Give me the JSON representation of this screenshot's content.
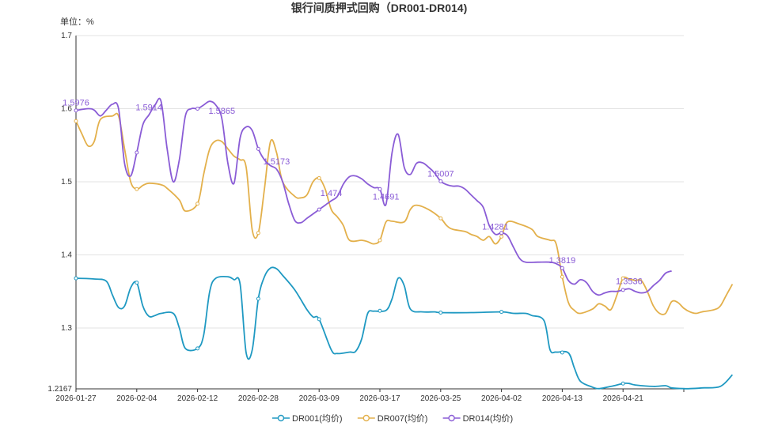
{
  "chart_data": {
    "type": "line",
    "title": "银行间质押式回购（DR001-DR014)",
    "unit_label": "单位：%",
    "ylim": [
      1.2167,
      1.7
    ],
    "yticks": [
      1.7,
      1.6,
      1.5,
      1.4,
      1.3
    ],
    "ymin_label": "1.2167",
    "x_tick_labels": [
      "2026-01-27",
      "2026-02-04",
      "2026-02-12",
      "2026-02-28",
      "2026-03-09",
      "2026-03-17",
      "2026-03-25",
      "2026-04-02",
      "2026-04-13",
      "2026-04-21"
    ],
    "x_tick_pos": [
      0,
      10,
      20,
      30,
      40,
      50,
      60,
      70,
      80,
      90
    ],
    "x_max": 100,
    "series": [
      {
        "name": "DR001(均价)",
        "color": "#1f99c2",
        "data": [
          [
            0,
            1.368
          ],
          [
            3,
            1.367
          ],
          [
            5,
            1.364
          ],
          [
            6,
            1.345
          ],
          [
            7,
            1.328
          ],
          [
            8,
            1.33
          ],
          [
            9,
            1.355
          ],
          [
            10,
            1.362
          ],
          [
            11,
            1.33
          ],
          [
            12,
            1.316
          ],
          [
            13,
            1.317
          ],
          [
            14,
            1.32
          ],
          [
            16,
            1.32
          ],
          [
            17,
            1.3
          ],
          [
            18,
            1.272
          ],
          [
            20,
            1.272
          ],
          [
            21,
            1.29
          ],
          [
            22,
            1.35
          ],
          [
            23,
            1.368
          ],
          [
            25,
            1.37
          ],
          [
            26,
            1.366
          ],
          [
            27,
            1.36
          ],
          [
            28,
            1.266
          ],
          [
            29,
            1.27
          ],
          [
            30,
            1.34
          ],
          [
            31,
            1.37
          ],
          [
            32,
            1.382
          ],
          [
            33,
            1.381
          ],
          [
            34,
            1.372
          ],
          [
            36,
            1.352
          ],
          [
            38,
            1.325
          ],
          [
            39,
            1.315
          ],
          [
            40,
            1.312
          ],
          [
            42,
            1.27
          ],
          [
            43,
            1.265
          ],
          [
            45,
            1.267
          ],
          [
            46,
            1.268
          ],
          [
            47,
            1.285
          ],
          [
            48,
            1.32
          ],
          [
            49,
            1.323
          ],
          [
            51,
            1.324
          ],
          [
            52,
            1.34
          ],
          [
            53,
            1.368
          ],
          [
            54,
            1.358
          ],
          [
            55,
            1.326
          ],
          [
            57,
            1.322
          ],
          [
            59,
            1.322
          ],
          [
            60,
            1.321
          ],
          [
            65,
            1.321
          ],
          [
            70,
            1.322
          ],
          [
            72,
            1.32
          ],
          [
            74,
            1.32
          ],
          [
            75,
            1.317
          ],
          [
            77,
            1.31
          ],
          [
            78,
            1.27
          ],
          [
            79,
            1.267
          ],
          [
            81,
            1.266
          ],
          [
            82,
            1.245
          ],
          [
            83,
            1.227
          ],
          [
            85,
            1.219
          ],
          [
            86,
            1.217
          ],
          [
            88,
            1.22
          ],
          [
            90,
            1.224
          ],
          [
            91,
            1.224
          ],
          [
            92,
            1.222
          ],
          [
            95,
            1.22
          ],
          [
            97,
            1.221
          ],
          [
            98,
            1.218
          ],
          [
            100,
            1.217
          ],
          [
            101,
            1.217
          ],
          [
            103,
            1.218
          ],
          [
            106,
            1.22
          ],
          [
            108,
            1.236
          ]
        ]
      },
      {
        "name": "DR007(均价)",
        "color": "#e3b04b",
        "data": [
          [
            0,
            1.583
          ],
          [
            1,
            1.565
          ],
          [
            2,
            1.549
          ],
          [
            3,
            1.555
          ],
          [
            4,
            1.585
          ],
          [
            6,
            1.59
          ],
          [
            7,
            1.59
          ],
          [
            8,
            1.545
          ],
          [
            9,
            1.5
          ],
          [
            10,
            1.49
          ],
          [
            11,
            1.495
          ],
          [
            12,
            1.498
          ],
          [
            14,
            1.496
          ],
          [
            15,
            1.491
          ],
          [
            17,
            1.475
          ],
          [
            18,
            1.46
          ],
          [
            20,
            1.47
          ],
          [
            21,
            1.51
          ],
          [
            22,
            1.545
          ],
          [
            23,
            1.556
          ],
          [
            24,
            1.555
          ],
          [
            25,
            1.545
          ],
          [
            26,
            1.535
          ],
          [
            27,
            1.53
          ],
          [
            28,
            1.52
          ],
          [
            29,
            1.434
          ],
          [
            30,
            1.43
          ],
          [
            31,
            1.49
          ],
          [
            32,
            1.555
          ],
          [
            33,
            1.54
          ],
          [
            34,
            1.5
          ],
          [
            36,
            1.48
          ],
          [
            37,
            1.478
          ],
          [
            38,
            1.482
          ],
          [
            39,
            1.5
          ],
          [
            40,
            1.505
          ],
          [
            41,
            1.49
          ],
          [
            42,
            1.462
          ],
          [
            43,
            1.452
          ],
          [
            44,
            1.44
          ],
          [
            45,
            1.42
          ],
          [
            47,
            1.42
          ],
          [
            48,
            1.418
          ],
          [
            49,
            1.415
          ],
          [
            50,
            1.42
          ],
          [
            51,
            1.445
          ],
          [
            52,
            1.446
          ],
          [
            54,
            1.445
          ],
          [
            55,
            1.462
          ],
          [
            56,
            1.468
          ],
          [
            58,
            1.462
          ],
          [
            60,
            1.45
          ],
          [
            61,
            1.44
          ],
          [
            62,
            1.435
          ],
          [
            64,
            1.432
          ],
          [
            65,
            1.428
          ],
          [
            66,
            1.425
          ],
          [
            67,
            1.42
          ],
          [
            68,
            1.425
          ],
          [
            69,
            1.415
          ],
          [
            70,
            1.425
          ],
          [
            71,
            1.445
          ],
          [
            73,
            1.442
          ],
          [
            75,
            1.435
          ],
          [
            76,
            1.425
          ],
          [
            78,
            1.42
          ],
          [
            79,
            1.415
          ],
          [
            80,
            1.37
          ],
          [
            81,
            1.335
          ],
          [
            82,
            1.324
          ],
          [
            83,
            1.32
          ],
          [
            85,
            1.326
          ],
          [
            86,
            1.333
          ],
          [
            87,
            1.33
          ],
          [
            88,
            1.325
          ],
          [
            89,
            1.345
          ],
          [
            90,
            1.368
          ],
          [
            91,
            1.367
          ],
          [
            92,
            1.365
          ],
          [
            93,
            1.365
          ],
          [
            94,
            1.35
          ],
          [
            95,
            1.33
          ],
          [
            96,
            1.32
          ],
          [
            97,
            1.32
          ],
          [
            98,
            1.336
          ],
          [
            99,
            1.335
          ],
          [
            100,
            1.327
          ],
          [
            101,
            1.322
          ],
          [
            102,
            1.32
          ],
          [
            103,
            1.322
          ],
          [
            105,
            1.325
          ],
          [
            106,
            1.33
          ],
          [
            107,
            1.345
          ],
          [
            108,
            1.36
          ]
        ]
      },
      {
        "name": "DR014(均价)",
        "color": "#8a5cd6",
        "data": [
          [
            0,
            1.5976
          ],
          [
            2,
            1.6
          ],
          [
            3,
            1.598
          ],
          [
            4,
            1.59
          ],
          [
            5,
            1.598
          ],
          [
            6,
            1.606
          ],
          [
            7,
            1.6
          ],
          [
            8,
            1.525
          ],
          [
            9,
            1.508
          ],
          [
            10,
            1.54
          ],
          [
            11,
            1.578
          ],
          [
            12,
            1.5914
          ],
          [
            13,
            1.605
          ],
          [
            14,
            1.61
          ],
          [
            15,
            1.545
          ],
          [
            16,
            1.5
          ],
          [
            17,
            1.53
          ],
          [
            18,
            1.59
          ],
          [
            19,
            1.6
          ],
          [
            20,
            1.6
          ],
          [
            21,
            1.605
          ],
          [
            22,
            1.61
          ],
          [
            23,
            1.605
          ],
          [
            24,
            1.5865
          ],
          [
            25,
            1.525
          ],
          [
            26,
            1.498
          ],
          [
            27,
            1.56
          ],
          [
            28,
            1.575
          ],
          [
            29,
            1.57
          ],
          [
            30,
            1.545
          ],
          [
            31,
            1.53
          ],
          [
            32,
            1.522
          ],
          [
            33,
            1.5173
          ],
          [
            34,
            1.5
          ],
          [
            35,
            1.47
          ],
          [
            36,
            1.447
          ],
          [
            37,
            1.444
          ],
          [
            38,
            1.45
          ],
          [
            40,
            1.462
          ],
          [
            41,
            1.468
          ],
          [
            42,
            1.474
          ],
          [
            43,
            1.48
          ],
          [
            44,
            1.497
          ],
          [
            45,
            1.507
          ],
          [
            46,
            1.508
          ],
          [
            47,
            1.504
          ],
          [
            48,
            1.497
          ],
          [
            49,
            1.492
          ],
          [
            50,
            1.49
          ],
          [
            51,
            1.4691
          ],
          [
            52,
            1.54
          ],
          [
            53,
            1.565
          ],
          [
            54,
            1.52
          ],
          [
            55,
            1.51
          ],
          [
            56,
            1.525
          ],
          [
            57,
            1.526
          ],
          [
            58,
            1.52
          ],
          [
            59,
            1.512
          ],
          [
            60,
            1.5007
          ],
          [
            61,
            1.496
          ],
          [
            62,
            1.494
          ],
          [
            63,
            1.494
          ],
          [
            64,
            1.49
          ],
          [
            65,
            1.482
          ],
          [
            66,
            1.474
          ],
          [
            67,
            1.465
          ],
          [
            68,
            1.44
          ],
          [
            69,
            1.4281
          ],
          [
            70,
            1.43
          ],
          [
            71,
            1.426
          ],
          [
            72,
            1.41
          ],
          [
            73,
            1.395
          ],
          [
            74,
            1.39
          ],
          [
            76,
            1.39
          ],
          [
            78,
            1.39
          ],
          [
            79,
            1.388
          ],
          [
            80,
            1.3819
          ],
          [
            81,
            1.365
          ],
          [
            82,
            1.36
          ],
          [
            83,
            1.366
          ],
          [
            84,
            1.362
          ],
          [
            85,
            1.35
          ],
          [
            86,
            1.345
          ],
          [
            87,
            1.348
          ],
          [
            88,
            1.35
          ],
          [
            89,
            1.35
          ],
          [
            90,
            1.352
          ],
          [
            91,
            1.3536
          ],
          [
            92,
            1.35
          ],
          [
            93,
            1.348
          ],
          [
            94,
            1.35
          ],
          [
            95,
            1.358
          ],
          [
            96,
            1.365
          ],
          [
            97,
            1.375
          ],
          [
            98,
            1.378
          ]
        ]
      }
    ],
    "data_labels": [
      {
        "series": 2,
        "x": 0,
        "text": "1.5976"
      },
      {
        "series": 2,
        "x": 12,
        "text": "1.5914"
      },
      {
        "series": 2,
        "x": 24,
        "text": "1.5865"
      },
      {
        "series": 2,
        "x": 33,
        "text": "1.5173"
      },
      {
        "series": 2,
        "x": 42,
        "text": "1.474"
      },
      {
        "series": 2,
        "x": 51,
        "text": "1.4691"
      },
      {
        "series": 2,
        "x": 60,
        "text": "1.5007"
      },
      {
        "series": 2,
        "x": 69,
        "text": "1.4281"
      },
      {
        "series": 2,
        "x": 80,
        "text": "1.3819"
      },
      {
        "series": 2,
        "x": 91,
        "text": "1.3536"
      }
    ],
    "marker_x": [
      0,
      10,
      20,
      30,
      40,
      50,
      60,
      70,
      80,
      90
    ],
    "legend_position": "bottom"
  }
}
